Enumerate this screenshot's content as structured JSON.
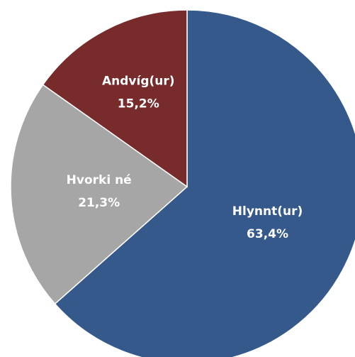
{
  "chart_data": {
    "type": "pie",
    "categories": [
      "Hlynnt(ur)",
      "Hvorki né",
      "Andvíg(ur)"
    ],
    "values": [
      63.4,
      21.3,
      15.2
    ],
    "value_labels": [
      "63,4%",
      "21,3%",
      "15,2%"
    ],
    "colors": [
      "#34598a",
      "#a6a6a6",
      "#772b2b"
    ]
  }
}
